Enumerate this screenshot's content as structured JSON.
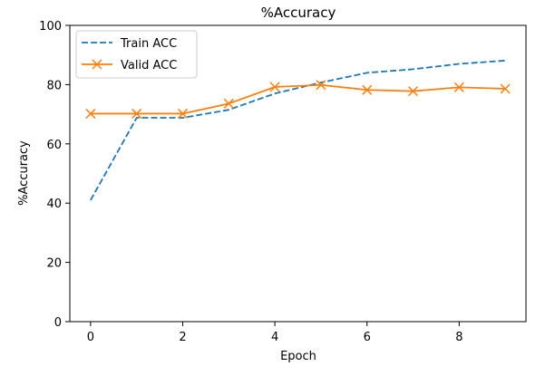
{
  "chart_data": {
    "type": "line",
    "title": "%Accuracy",
    "xlabel": "Epoch",
    "ylabel": "%Accuracy",
    "xlim": [
      -0.45,
      9.45
    ],
    "ylim": [
      0,
      100
    ],
    "xticks": [
      0,
      2,
      4,
      6,
      8
    ],
    "xtick_labels": [
      "0",
      "2",
      "4",
      "6",
      "8"
    ],
    "yticks": [
      0,
      20,
      40,
      60,
      80,
      100
    ],
    "ytick_labels": [
      "0",
      "20",
      "40",
      "60",
      "80",
      "100"
    ],
    "grid": false,
    "legend_position": "upper-left",
    "x": [
      0,
      1,
      2,
      3,
      4,
      5,
      6,
      7,
      8,
      9
    ],
    "series": [
      {
        "name": "Train ACC",
        "color": "#1f77b4",
        "line_style": "dashed",
        "marker": "none",
        "values": [
          41,
          68.8,
          68.8,
          71.5,
          77,
          80.7,
          84,
          85.2,
          87,
          88.1
        ]
      },
      {
        "name": "Valid ACC",
        "color": "#ff7f0e",
        "line_style": "solid",
        "marker": "x",
        "values": [
          70.2,
          70.2,
          70.2,
          73.6,
          79.2,
          79.9,
          78.2,
          77.8,
          79.1,
          78.6
        ]
      }
    ]
  }
}
